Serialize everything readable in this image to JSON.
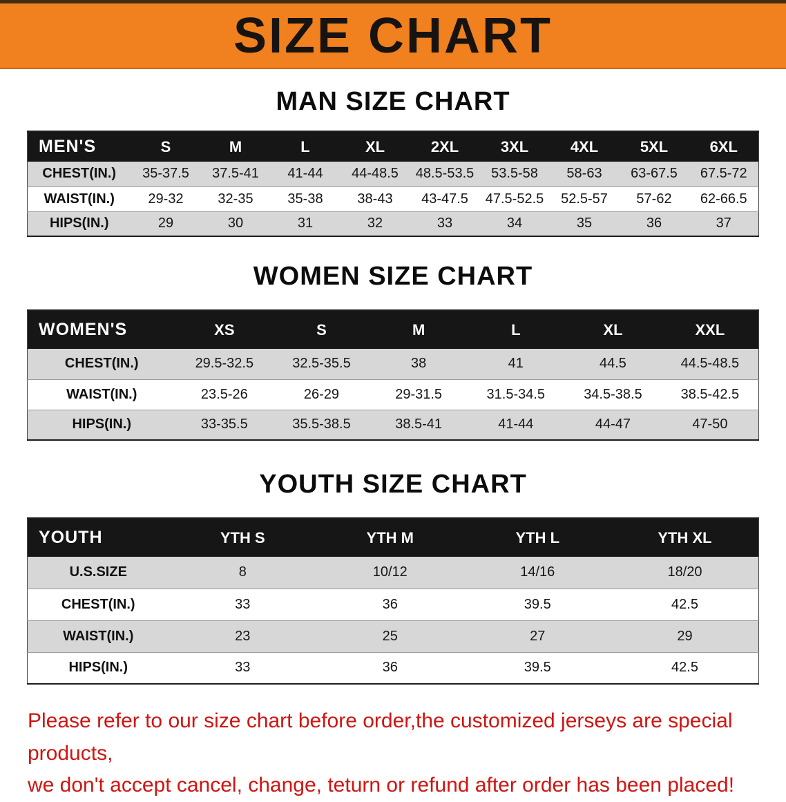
{
  "banner": {
    "title": "SIZE CHART",
    "bg_color": "#f1801f",
    "text_color": "#171310"
  },
  "colors": {
    "table_header_bg": "#161616",
    "row_stripe": "#d7d7d7",
    "disclaimer_red": "#cf1512"
  },
  "sections": [
    {
      "heading": "MAN SIZE CHART",
      "table": {
        "header": [
          "MEN'S",
          "S",
          "M",
          "L",
          "XL",
          "2XL",
          "3XL",
          "4XL",
          "5XL",
          "6XL"
        ],
        "rows": [
          [
            "CHEST(IN.)",
            "35-37.5",
            "37.5-41",
            "41-44",
            "44-48.5",
            "48.5-53.5",
            "53.5-58",
            "58-63",
            "63-67.5",
            "67.5-72"
          ],
          [
            "WAIST(IN.)",
            "29-32",
            "32-35",
            "35-38",
            "38-43",
            "43-47.5",
            "47.5-52.5",
            "52.5-57",
            "57-62",
            "62-66.5"
          ],
          [
            "HIPS(IN.)",
            "29",
            "30",
            "31",
            "32",
            "33",
            "34",
            "35",
            "36",
            "37"
          ]
        ]
      }
    },
    {
      "heading": "WOMEN SIZE CHART",
      "table": {
        "header": [
          "WOMEN'S",
          "XS",
          "S",
          "M",
          "L",
          "XL",
          "XXL"
        ],
        "rows": [
          [
            "CHEST(IN.)",
            "29.5-32.5",
            "32.5-35.5",
            "38",
            "41",
            "44.5",
            "44.5-48.5"
          ],
          [
            "WAIST(IN.)",
            "23.5-26",
            "26-29",
            "29-31.5",
            "31.5-34.5",
            "34.5-38.5",
            "38.5-42.5"
          ],
          [
            "HIPS(IN.)",
            "33-35.5",
            "35.5-38.5",
            "38.5-41",
            "41-44",
            "44-47",
            "47-50"
          ]
        ]
      }
    },
    {
      "heading": "YOUTH SIZE CHART",
      "table": {
        "header": [
          "YOUTH",
          "YTH S",
          "YTH M",
          "YTH L",
          "YTH XL"
        ],
        "rows": [
          [
            "U.S.SIZE",
            "8",
            "10/12",
            "14/16",
            "18/20"
          ],
          [
            "CHEST(IN.)",
            "33",
            "36",
            "39.5",
            "42.5"
          ],
          [
            "WAIST(IN.)",
            "23",
            "25",
            "27",
            "29"
          ],
          [
            "HIPS(IN.)",
            "33",
            "36",
            "39.5",
            "42.5"
          ]
        ]
      }
    }
  ],
  "disclaimer": {
    "line1": "Please refer to our size chart before order,the customized jerseys are special products,",
    "line2": "we don't accept cancel, change, teturn or refund after order has been placed!"
  }
}
